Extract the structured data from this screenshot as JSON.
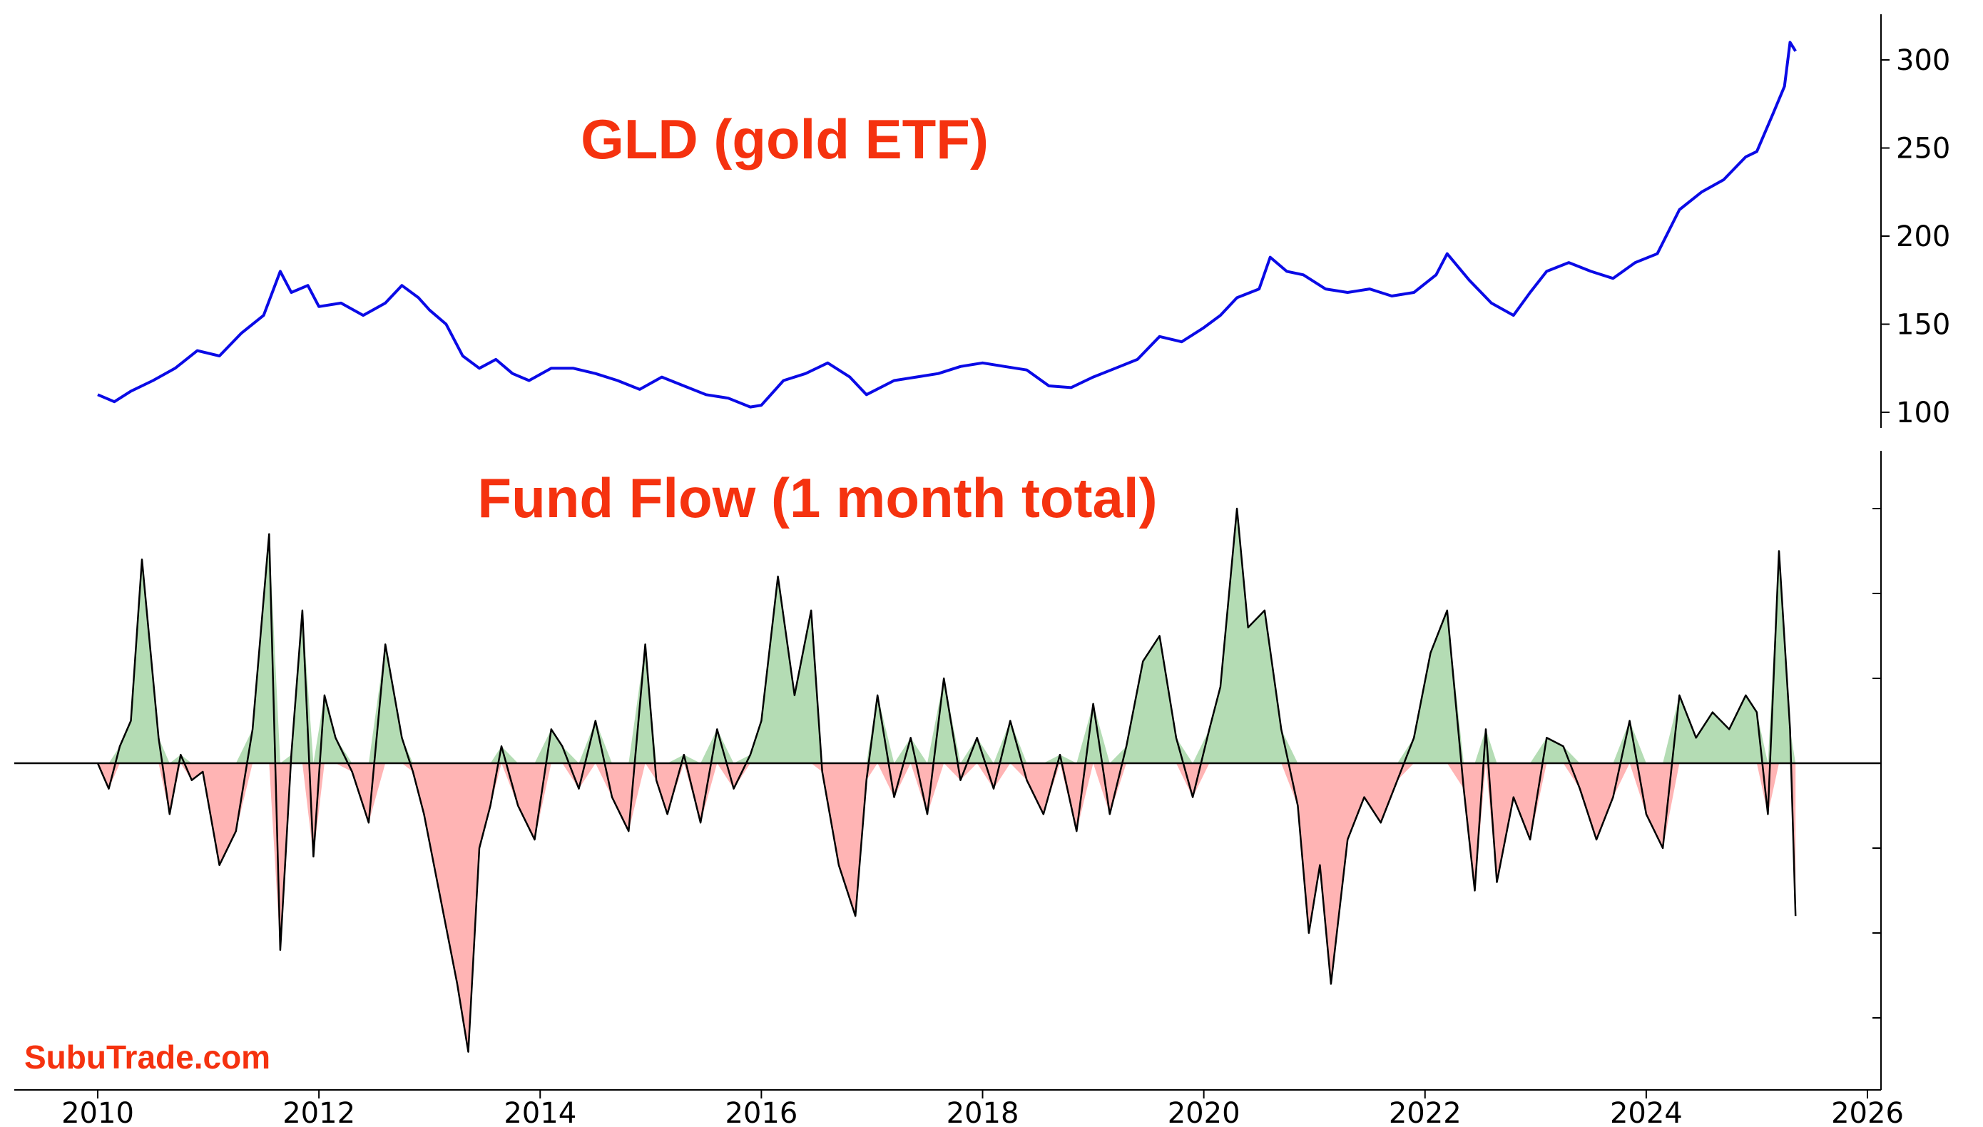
{
  "watermark": "SubuTrade.com",
  "colors": {
    "price_line": "#0a0ae6",
    "flow_line": "#000000",
    "flow_positive_fill": "#b4dcb4",
    "flow_negative_fill": "#ffb4b4",
    "title": "#f5320f"
  },
  "chart_data": [
    {
      "type": "line",
      "title": "GLD (gold ETF)",
      "xlabel": "",
      "ylabel": "",
      "x_ticks": [
        "2010",
        "2012",
        "2014",
        "2016",
        "2018",
        "2020",
        "2022",
        "2024",
        "2026"
      ],
      "y_ticks": [
        "100",
        "150",
        "200",
        "250",
        "300"
      ],
      "xlim": [
        2010,
        2026
      ],
      "ylim": [
        100,
        300
      ],
      "grid": false,
      "series": [
        {
          "x": [
            2010.0,
            2010.15,
            2010.3,
            2010.5,
            2010.7,
            2010.9,
            2011.1,
            2011.3,
            2011.5,
            2011.65,
            2011.75,
            2011.9,
            2012.0,
            2012.2,
            2012.4,
            2012.6,
            2012.75,
            2012.9,
            2013.0,
            2013.15,
            2013.3,
            2013.45,
            2013.6,
            2013.75,
            2013.9,
            2014.1,
            2014.3,
            2014.5,
            2014.7,
            2014.9,
            2015.1,
            2015.3,
            2015.5,
            2015.7,
            2015.9,
            2016.0,
            2016.2,
            2016.4,
            2016.6,
            2016.8,
            2016.95,
            2017.2,
            2017.4,
            2017.6,
            2017.8,
            2018.0,
            2018.2,
            2018.4,
            2018.6,
            2018.8,
            2019.0,
            2019.2,
            2019.4,
            2019.6,
            2019.8,
            2020.0,
            2020.15,
            2020.3,
            2020.5,
            2020.6,
            2020.75,
            2020.9,
            2021.1,
            2021.3,
            2021.5,
            2021.7,
            2021.9,
            2022.1,
            2022.2,
            2022.4,
            2022.6,
            2022.8,
            2022.95,
            2023.1,
            2023.3,
            2023.5,
            2023.7,
            2023.9,
            2024.1,
            2024.3,
            2024.5,
            2024.7,
            2024.9,
            2025.0,
            2025.15,
            2025.25,
            2025.3,
            2025.35
          ],
          "y": [
            110,
            106,
            112,
            118,
            125,
            135,
            132,
            145,
            155,
            180,
            168,
            172,
            160,
            162,
            155,
            162,
            172,
            165,
            158,
            150,
            132,
            125,
            130,
            122,
            118,
            125,
            125,
            122,
            118,
            113,
            120,
            115,
            110,
            108,
            103,
            104,
            118,
            122,
            128,
            120,
            110,
            118,
            120,
            122,
            126,
            128,
            126,
            124,
            115,
            114,
            120,
            125,
            130,
            143,
            140,
            148,
            155,
            165,
            170,
            188,
            180,
            178,
            170,
            168,
            170,
            166,
            168,
            178,
            190,
            175,
            162,
            155,
            168,
            180,
            185,
            180,
            176,
            185,
            190,
            215,
            225,
            232,
            245,
            248,
            270,
            285,
            310,
            305
          ],
          "color": "#0a0ae6"
        }
      ]
    },
    {
      "type": "area",
      "title": "Fund Flow (1 month total)",
      "xlabel": "",
      "ylabel": "",
      "x_ticks": [
        "2010",
        "2012",
        "2014",
        "2016",
        "2018",
        "2020",
        "2022",
        "2024",
        "2026"
      ],
      "xlim": [
        2010,
        2026
      ],
      "ylim": [
        -3.5,
        3.3
      ],
      "y_tick_values": [
        -3,
        -2,
        -1,
        1,
        2,
        3
      ],
      "grid": false,
      "baseline": 0,
      "series": [
        {
          "x": [
            2010.0,
            2010.1,
            2010.2,
            2010.3,
            2010.4,
            2010.55,
            2010.65,
            2010.75,
            2010.85,
            2010.95,
            2011.1,
            2011.25,
            2011.4,
            2011.55,
            2011.65,
            2011.75,
            2011.85,
            2011.95,
            2012.05,
            2012.15,
            2012.3,
            2012.45,
            2012.6,
            2012.75,
            2012.85,
            2012.95,
            2013.1,
            2013.25,
            2013.35,
            2013.45,
            2013.55,
            2013.65,
            2013.8,
            2013.95,
            2014.1,
            2014.2,
            2014.35,
            2014.5,
            2014.65,
            2014.8,
            2014.95,
            2015.05,
            2015.15,
            2015.3,
            2015.45,
            2015.6,
            2015.75,
            2015.9,
            2016.0,
            2016.15,
            2016.3,
            2016.45,
            2016.55,
            2016.7,
            2016.85,
            2016.95,
            2017.05,
            2017.2,
            2017.35,
            2017.5,
            2017.65,
            2017.8,
            2017.95,
            2018.1,
            2018.25,
            2018.4,
            2018.55,
            2018.7,
            2018.85,
            2019.0,
            2019.15,
            2019.3,
            2019.45,
            2019.6,
            2019.75,
            2019.9,
            2020.05,
            2020.15,
            2020.3,
            2020.4,
            2020.55,
            2020.7,
            2020.85,
            2020.95,
            2021.05,
            2021.15,
            2021.3,
            2021.45,
            2021.6,
            2021.75,
            2021.9,
            2022.05,
            2022.2,
            2022.35,
            2022.45,
            2022.55,
            2022.65,
            2022.8,
            2022.95,
            2023.1,
            2023.25,
            2023.4,
            2023.55,
            2023.7,
            2023.85,
            2024.0,
            2024.15,
            2024.3,
            2024.45,
            2024.6,
            2024.75,
            2024.9,
            2025.0,
            2025.1,
            2025.2,
            2025.3,
            2025.35
          ],
          "y": [
            0.0,
            -0.3,
            0.2,
            0.5,
            2.4,
            0.3,
            -0.6,
            0.1,
            -0.2,
            -0.1,
            -1.2,
            -0.8,
            0.4,
            2.7,
            -2.2,
            0.1,
            1.8,
            -1.1,
            0.8,
            0.3,
            -0.1,
            -0.7,
            1.4,
            0.3,
            -0.1,
            -0.6,
            -1.6,
            -2.6,
            -3.4,
            -1.0,
            -0.5,
            0.2,
            -0.5,
            -0.9,
            0.4,
            0.2,
            -0.3,
            0.5,
            -0.4,
            -0.8,
            1.4,
            -0.2,
            -0.6,
            0.1,
            -0.7,
            0.4,
            -0.3,
            0.1,
            0.5,
            2.2,
            0.8,
            1.8,
            -0.1,
            -1.2,
            -1.8,
            -0.2,
            0.8,
            -0.4,
            0.3,
            -0.6,
            1.0,
            -0.2,
            0.3,
            -0.3,
            0.5,
            -0.2,
            -0.6,
            0.1,
            -0.8,
            0.7,
            -0.6,
            0.2,
            1.2,
            1.5,
            0.3,
            -0.4,
            0.4,
            0.9,
            3.0,
            1.6,
            1.8,
            0.4,
            -0.5,
            -2.0,
            -1.2,
            -2.6,
            -0.9,
            -0.4,
            -0.7,
            -0.2,
            0.3,
            1.3,
            1.8,
            -0.3,
            -1.5,
            0.4,
            -1.4,
            -0.4,
            -0.9,
            0.3,
            0.2,
            -0.3,
            -0.9,
            -0.4,
            0.5,
            -0.6,
            -1.0,
            0.8,
            0.3,
            0.6,
            0.4,
            0.8,
            0.6,
            -0.6,
            2.5,
            0.4,
            -1.8
          ],
          "color": "#000000"
        }
      ]
    }
  ]
}
